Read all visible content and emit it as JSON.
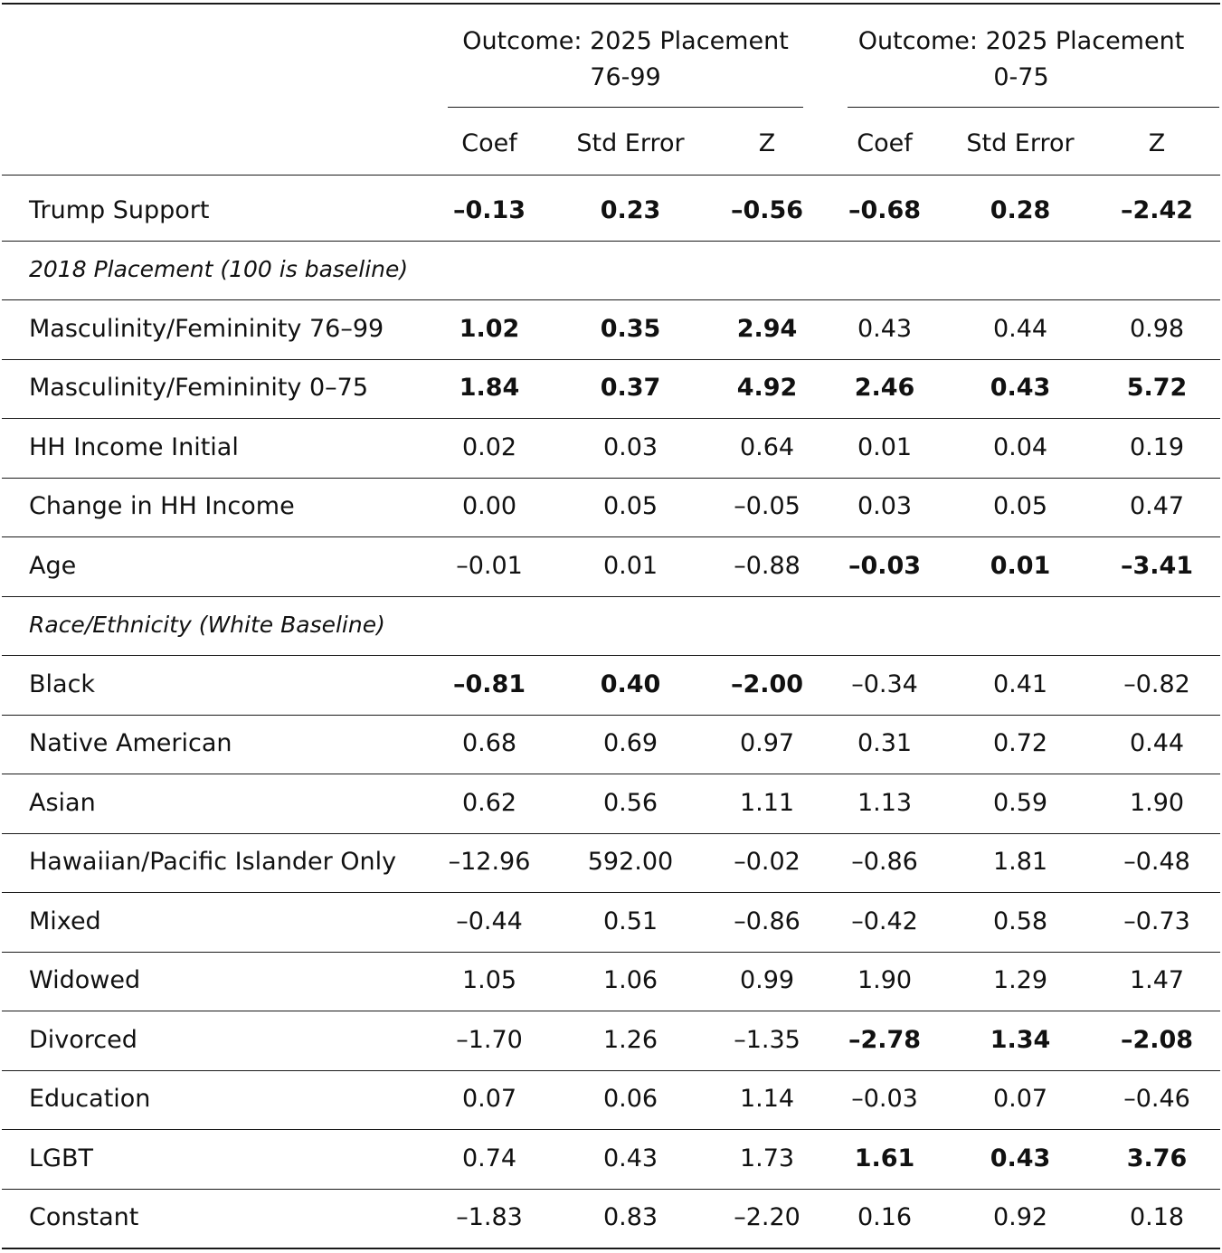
{
  "groups": [
    {
      "line1": "Outcome: 2025 Placement",
      "line2": "76-99"
    },
    {
      "line1": "Outcome: 2025 Placement",
      "line2": "0-75"
    }
  ],
  "col_headers": [
    "Coef",
    "Std Error",
    "Z",
    "Coef",
    "Std Error",
    "Z"
  ],
  "rows": [
    {
      "label": "Trump Support",
      "cells": [
        "–0.13",
        "0.23",
        "–0.56",
        "–0.68",
        "0.28",
        "–2.42"
      ],
      "bold": [
        true,
        true,
        true,
        true,
        true,
        true
      ]
    },
    {
      "section": "2018 Placement (100 is baseline)"
    },
    {
      "label": "Masculinity/Femininity 76–99",
      "cells": [
        "1.02",
        "0.35",
        "2.94",
        "0.43",
        "0.44",
        "0.98"
      ],
      "bold": [
        true,
        true,
        true,
        false,
        false,
        false
      ]
    },
    {
      "label": "Masculinity/Femininity 0–75",
      "cells": [
        "1.84",
        "0.37",
        "4.92",
        "2.46",
        "0.43",
        "5.72"
      ],
      "bold": [
        true,
        true,
        true,
        true,
        true,
        true
      ]
    },
    {
      "label": "HH Income Initial",
      "cells": [
        "0.02",
        "0.03",
        "0.64",
        "0.01",
        "0.04",
        "0.19"
      ],
      "bold": [
        false,
        false,
        false,
        false,
        false,
        false
      ]
    },
    {
      "label": "Change in HH Income",
      "cells": [
        "0.00",
        "0.05",
        "–0.05",
        "0.03",
        "0.05",
        "0.47"
      ],
      "bold": [
        false,
        false,
        false,
        false,
        false,
        false
      ]
    },
    {
      "label": "Age",
      "cells": [
        "–0.01",
        "0.01",
        "–0.88",
        "–0.03",
        "0.01",
        "–3.41"
      ],
      "bold": [
        false,
        false,
        false,
        true,
        true,
        true
      ]
    },
    {
      "section": "Race/Ethnicity (White Baseline)"
    },
    {
      "label": "Black",
      "cells": [
        "–0.81",
        "0.40",
        "–2.00",
        "–0.34",
        "0.41",
        "–0.82"
      ],
      "bold": [
        true,
        true,
        true,
        false,
        false,
        false
      ]
    },
    {
      "label": "Native American",
      "cells": [
        "0.68",
        "0.69",
        "0.97",
        "0.31",
        "0.72",
        "0.44"
      ],
      "bold": [
        false,
        false,
        false,
        false,
        false,
        false
      ]
    },
    {
      "label": "Asian",
      "cells": [
        "0.62",
        "0.56",
        "1.11",
        "1.13",
        "0.59",
        "1.90"
      ],
      "bold": [
        false,
        false,
        false,
        false,
        false,
        false
      ]
    },
    {
      "label": "Hawaiian/Pacific Islander Only",
      "cells": [
        "–12.96",
        "592.00",
        "–0.02",
        "–0.86",
        "1.81",
        "–0.48"
      ],
      "bold": [
        false,
        false,
        false,
        false,
        false,
        false
      ]
    },
    {
      "label": "Mixed",
      "cells": [
        "–0.44",
        "0.51",
        "–0.86",
        "–0.42",
        "0.58",
        "–0.73"
      ],
      "bold": [
        false,
        false,
        false,
        false,
        false,
        false
      ]
    },
    {
      "label": "Widowed",
      "cells": [
        "1.05",
        "1.06",
        "0.99",
        "1.90",
        "1.29",
        "1.47"
      ],
      "bold": [
        false,
        false,
        false,
        false,
        false,
        false
      ]
    },
    {
      "label": "Divorced",
      "cells": [
        "–1.70",
        "1.26",
        "–1.35",
        "–2.78",
        "1.34",
        "–2.08"
      ],
      "bold": [
        false,
        false,
        false,
        true,
        true,
        true
      ]
    },
    {
      "label": "Education",
      "cells": [
        "0.07",
        "0.06",
        "1.14",
        "–0.03",
        "0.07",
        "–0.46"
      ],
      "bold": [
        false,
        false,
        false,
        false,
        false,
        false
      ]
    },
    {
      "label": "LGBT",
      "cells": [
        "0.74",
        "0.43",
        "1.73",
        "1.61",
        "0.43",
        "3.76"
      ],
      "bold": [
        false,
        false,
        false,
        true,
        true,
        true
      ]
    },
    {
      "label": "Constant",
      "cells": [
        "–1.83",
        "0.83",
        "–2.20",
        "0.16",
        "0.92",
        "0.18"
      ],
      "bold": [
        false,
        false,
        false,
        false,
        false,
        false
      ]
    }
  ]
}
